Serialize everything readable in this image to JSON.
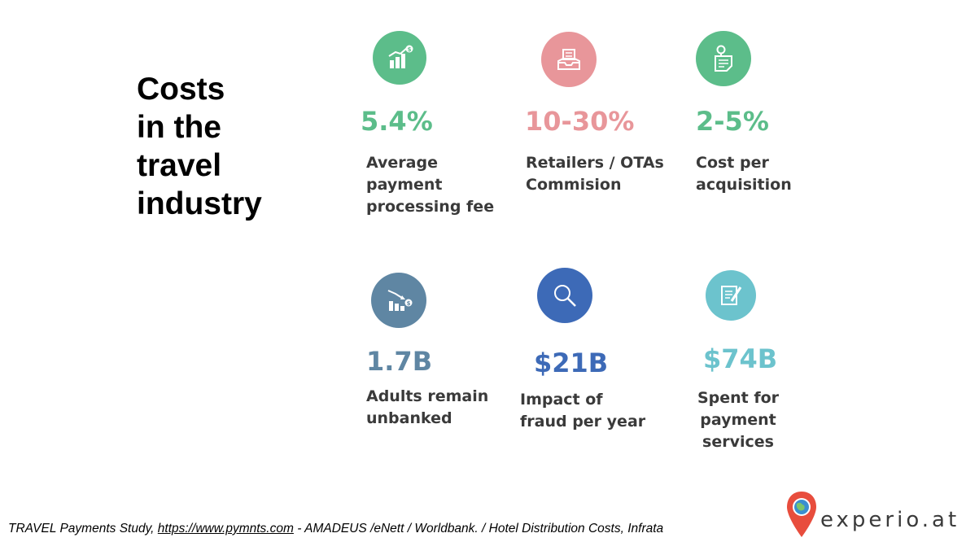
{
  "title_lines": [
    "Costs",
    "in the",
    "travel",
    "industry"
  ],
  "stats": [
    {
      "value": "5.4%",
      "lines": [
        "Average",
        "payment",
        "processing fee"
      ],
      "color": "#5cbd8a",
      "icon": "growth-chart-icon"
    },
    {
      "value": "10-30%",
      "lines": [
        "Retailers / OTAs",
        "Commision"
      ],
      "color": "#e8969a",
      "icon": "inbox-tray-icon"
    },
    {
      "value": "2-5%",
      "lines": [
        "Cost per",
        "acquisition"
      ],
      "color": "#5cbd8a",
      "icon": "clipboard-icon"
    },
    {
      "value": "1.7B",
      "lines": [
        "Adults remain",
        "unbanked"
      ],
      "color": "#5f86a3",
      "icon": "decline-chart-icon"
    },
    {
      "value": "$21B",
      "lines": [
        "Impact of",
        "fraud per year"
      ],
      "color": "#3d6ab7",
      "icon": "magnifier-icon"
    },
    {
      "value": "$74B",
      "lines": [
        "Spent for",
        "payment",
        "services"
      ],
      "color": "#6cc3cd",
      "icon": "document-pen-icon"
    }
  ],
  "footer": {
    "prefix": "TRAVEL Payments Study, ",
    "link": "https://www.pymnts.com",
    "suffix": "  - AMADEUS /eNett / Worldbank. / Hotel Distribution Costs, Infrata"
  },
  "logo": {
    "text": "experio.at",
    "pin_color": "#e84d3d",
    "globe_color": "#3b8fd0"
  }
}
